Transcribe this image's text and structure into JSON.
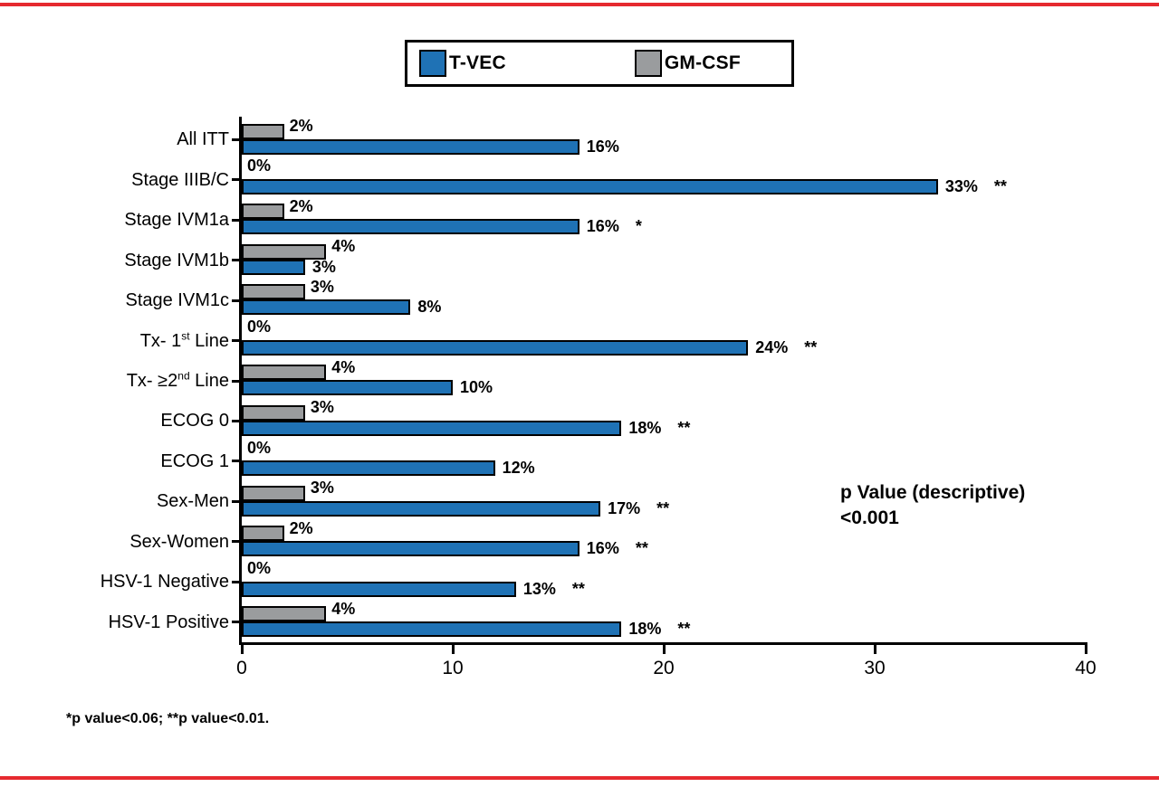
{
  "colors": {
    "rule_red": "#e62a2f",
    "axis_black": "#000000",
    "tvec_blue": "#1f72b5",
    "gmcsf_gray": "#9a9c9e"
  },
  "legend": {
    "items": [
      {
        "label": "T-VEC",
        "color": "#1f72b5"
      },
      {
        "label": "GM-CSF",
        "color": "#9a9c9e"
      }
    ]
  },
  "chart_data": {
    "type": "bar",
    "orientation": "horizontal",
    "title": "",
    "xlabel": "",
    "ylabel": "",
    "xlim": [
      0,
      40
    ],
    "xticks": [
      0,
      10,
      20,
      30,
      40
    ],
    "grid": false,
    "legend_position": "top-center",
    "categories": [
      "All ITT",
      "Stage IIIB/C",
      "Stage IVM1a",
      "Stage IVM1b",
      "Stage IVM1c",
      "Tx- 1st Line",
      "Tx- ≥2nd Line",
      "ECOG 0",
      "ECOG 1",
      "Sex-Men",
      "Sex-Women",
      "HSV-1 Negative",
      "HSV-1 Positive"
    ],
    "series": [
      {
        "name": "GM-CSF",
        "color": "#9a9c9e",
        "position": "top",
        "values": [
          2,
          0,
          2,
          4,
          3,
          0,
          4,
          3,
          0,
          3,
          2,
          0,
          4
        ]
      },
      {
        "name": "T-VEC",
        "color": "#1f72b5",
        "position": "bottom",
        "values": [
          16,
          33,
          16,
          3,
          8,
          24,
          10,
          18,
          12,
          17,
          16,
          13,
          18
        ]
      }
    ],
    "value_suffix": "%",
    "significance": [
      "",
      "**",
      "*",
      "",
      "",
      "**",
      "",
      "**",
      "",
      "**",
      "**",
      "**",
      "**"
    ]
  },
  "annotation": {
    "line1": "p Value (descriptive)",
    "line2": "<0.001"
  },
  "footnote": "*p value<0.06; **p value<0.01."
}
